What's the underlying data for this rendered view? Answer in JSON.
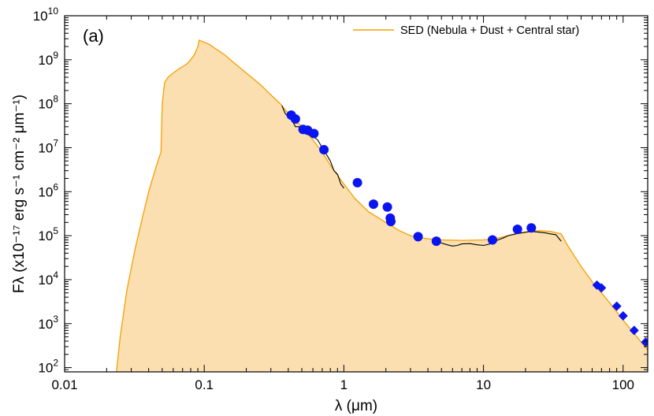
{
  "chart_data": {
    "type": "line",
    "panel_label": "(a)",
    "xlabel": "λ (μm)",
    "ylabel": "Fλ (x10⁻¹⁷ erg s⁻¹ cm⁻² μm⁻¹)",
    "x_scale": "log",
    "y_scale": "log",
    "xlim": [
      0.01,
      150
    ],
    "ylim": [
      80,
      10000000000.0
    ],
    "x_ticks": [
      {
        "value": 0.01,
        "label": "0.01"
      },
      {
        "value": 0.1,
        "label": "0.1"
      },
      {
        "value": 1,
        "label": "1"
      },
      {
        "value": 10,
        "label": "10"
      },
      {
        "value": 100,
        "label": "100"
      }
    ],
    "y_ticks": [
      {
        "value": 100.0,
        "base": "10",
        "exp": "2"
      },
      {
        "value": 1000.0,
        "base": "10",
        "exp": "3"
      },
      {
        "value": 10000.0,
        "base": "10",
        "exp": "4"
      },
      {
        "value": 100000.0,
        "base": "10",
        "exp": "5"
      },
      {
        "value": 1000000.0,
        "base": "10",
        "exp": "6"
      },
      {
        "value": 10000000.0,
        "base": "10",
        "exp": "7"
      },
      {
        "value": 100000000.0,
        "base": "10",
        "exp": "8"
      },
      {
        "value": 1000000000.0,
        "base": "10",
        "exp": "9"
      },
      {
        "value": 10000000000.0,
        "base": "10",
        "exp": "10"
      }
    ],
    "legend": {
      "placement": "top-right",
      "entries": [
        {
          "label": "SED (Nebula + Dust + Central star)",
          "color": "#f5a000"
        }
      ]
    },
    "colors": {
      "sed_line": "#f5a000",
      "sed_fill": "#fbdfb0",
      "observed_spectrum": "#000000",
      "photometry": "#0a14f0"
    },
    "series": [
      {
        "kind": "model_sed",
        "x": [
          0.0235,
          0.025,
          0.028,
          0.032,
          0.036,
          0.04,
          0.045,
          0.049,
          0.05,
          0.052,
          0.055,
          0.06,
          0.065,
          0.07,
          0.075,
          0.08,
          0.085,
          0.09,
          0.092,
          0.094,
          0.1,
          0.11,
          0.12,
          0.14,
          0.16,
          0.2,
          0.25,
          0.3,
          0.35,
          0.4,
          0.5,
          0.6,
          0.7,
          0.8,
          1.0,
          1.2,
          1.5,
          2.0,
          2.5,
          3.0,
          4.0,
          5.0,
          7.0,
          10.0,
          12.0,
          15.0,
          20.0,
          25.0,
          30.0,
          36.0,
          40.0,
          50.0,
          60.0,
          70.0,
          80.0,
          100.0,
          120.0,
          150.0
        ],
        "y": [
          80,
          500,
          6000,
          50000,
          250000,
          1000000,
          3500000,
          8000000,
          100000000,
          300000000,
          400000000,
          500000000,
          600000000,
          700000000,
          800000000,
          1000000000,
          1300000000,
          2000000000,
          2800000000,
          2700000000,
          2500000000,
          2200000000,
          1800000000,
          1300000000,
          900000000,
          500000000,
          280000000,
          160000000,
          100000000,
          60000000,
          30000000,
          15000000,
          8000000,
          4000000,
          1500000,
          700000,
          350000,
          200000,
          130000,
          100000,
          85000,
          80000,
          78000,
          80000,
          85000,
          100000,
          120000,
          130000,
          125000,
          110000,
          60000,
          20000,
          9000,
          5000,
          3000,
          1200,
          600,
          250
        ]
      },
      {
        "kind": "observed_spectrum",
        "x": [
          0.36,
          0.38,
          0.4,
          0.43,
          0.45,
          0.48,
          0.5,
          0.55,
          0.6,
          0.65,
          0.7,
          0.75,
          0.8,
          0.85,
          0.9,
          0.95,
          1.0
        ],
        "y": [
          90000000,
          60000000,
          50000000,
          40000000,
          30000000,
          30000000,
          25000000,
          20000000,
          18000000,
          15000000,
          10000000,
          7000000,
          5000000,
          3000000,
          2500000,
          1500000,
          1200000
        ]
      },
      {
        "kind": "observed_spectrum",
        "x": [
          4.7,
          5.0,
          5.5,
          6.0,
          6.5,
          7.0,
          8.0,
          9.0,
          10.0,
          11.0,
          12.0,
          13.0,
          14.0,
          15.0,
          17.0,
          20.0,
          22.0,
          25.0,
          28.0,
          30.0,
          33.0,
          36.0
        ],
        "y": [
          75000,
          68000,
          62000,
          58000,
          60000,
          65000,
          66000,
          62000,
          60000,
          64000,
          75000,
          82000,
          90000,
          100000,
          110000,
          120000,
          125000,
          120000,
          115000,
          110000,
          105000,
          75000
        ]
      },
      {
        "kind": "photometry",
        "marker": "circle",
        "x": [
          0.42,
          0.45,
          0.51,
          0.55,
          0.61,
          0.72,
          1.25,
          1.63,
          2.05,
          2.15,
          2.17,
          3.4,
          4.6,
          11.6,
          17.5,
          22.0
        ],
        "y": [
          55000000,
          45000000,
          26000000,
          25000000,
          21000000,
          9000000,
          1600000,
          520000,
          450000,
          250000,
          210000,
          95000,
          75000,
          80000,
          140000,
          150000
        ]
      },
      {
        "kind": "photometry",
        "marker": "diamond",
        "x": [
          65,
          70,
          90,
          100,
          120,
          145
        ],
        "y": [
          7500,
          6500,
          2500,
          1500,
          700,
          380
        ]
      }
    ]
  }
}
